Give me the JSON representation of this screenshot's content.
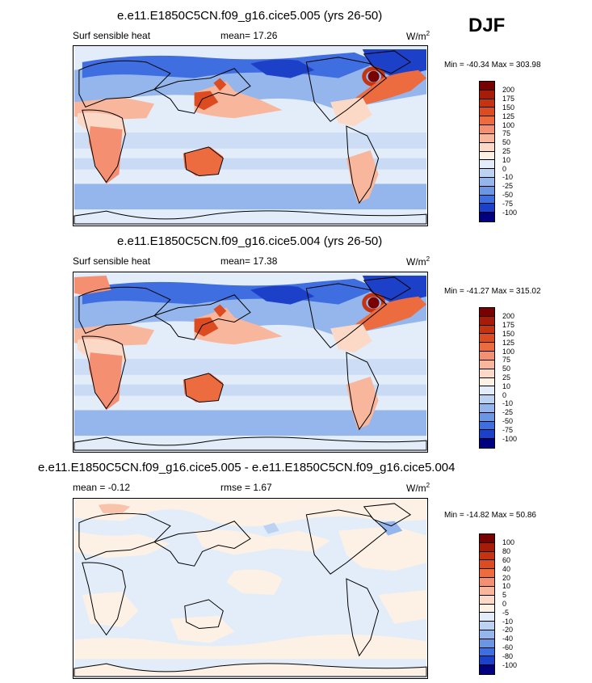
{
  "season": "DJF",
  "panels": [
    {
      "title": "e.e11.E1850C5CN.f09_g16.cice5.005 (yrs 26-50)",
      "left_label": "Surf sensible heat",
      "center_label": "mean=  17.26",
      "units": "W/m",
      "units_sup": "2",
      "minmax": "Min = -40.34 Max = 303.98",
      "levels": [
        "200",
        "175",
        "150",
        "125",
        "100",
        "75",
        "50",
        "25",
        "10",
        "0",
        "-10",
        "-25",
        "-50",
        "-75",
        "-100"
      ]
    },
    {
      "title": "e.e11.E1850C5CN.f09_g16.cice5.004 (yrs 26-50)",
      "left_label": "Surf sensible heat",
      "center_label": "mean=  17.38",
      "units": "W/m",
      "units_sup": "2",
      "minmax": "Min = -41.27 Max = 315.02",
      "levels": [
        "200",
        "175",
        "150",
        "125",
        "100",
        "75",
        "50",
        "25",
        "10",
        "0",
        "-10",
        "-25",
        "-50",
        "-75",
        "-100"
      ]
    },
    {
      "title": "e.e11.E1850C5CN.f09_g16.cice5.005 - e.e11.E1850C5CN.f09_g16.cice5.004",
      "left_label": "mean =  -0.12",
      "center_label": "rmse =  1.67",
      "units": "W/m",
      "units_sup": "2",
      "minmax": "Min = -14.82 Max =  50.86",
      "levels": [
        "100",
        "80",
        "60",
        "40",
        "20",
        "10",
        "5",
        "0",
        "-5",
        "-10",
        "-20",
        "-40",
        "-60",
        "-80",
        "-100"
      ]
    }
  ],
  "colors": [
    "#7a0000",
    "#a51d08",
    "#c5340e",
    "#dc4c20",
    "#ec6b3f",
    "#f49071",
    "#f8b69c",
    "#fcd9c6",
    "#fdf1e6",
    "#e3edf9",
    "#bcd2f2",
    "#94b6ec",
    "#6b96e6",
    "#3f6ee0",
    "#1d40c9",
    "#000080"
  ],
  "chart_data": [
    {
      "type": "heatmap",
      "title": "e.e11.E1850C5CN.f09_g16.cice5.005 (yrs 26-50)",
      "variable": "Surf sensible heat",
      "units": "W/m2",
      "mean": 17.26,
      "min": -40.34,
      "max": 303.98,
      "contour_levels": [
        -100,
        -75,
        -50,
        -25,
        -10,
        0,
        10,
        25,
        50,
        75,
        100,
        125,
        150,
        175,
        200
      ]
    },
    {
      "type": "heatmap",
      "title": "e.e11.E1850C5CN.f09_g16.cice5.004 (yrs 26-50)",
      "variable": "Surf sensible heat",
      "units": "W/m2",
      "mean": 17.38,
      "min": -41.27,
      "max": 315.02,
      "contour_levels": [
        -100,
        -75,
        -50,
        -25,
        -10,
        0,
        10,
        25,
        50,
        75,
        100,
        125,
        150,
        175,
        200
      ]
    },
    {
      "type": "heatmap",
      "title": "e.e11.E1850C5CN.f09_g16.cice5.005 - e.e11.E1850C5CN.f09_g16.cice5.004",
      "units": "W/m2",
      "mean": -0.12,
      "rmse": 1.67,
      "min": -14.82,
      "max": 50.86,
      "contour_levels": [
        -100,
        -80,
        -60,
        -40,
        -20,
        -10,
        -5,
        0,
        5,
        10,
        20,
        40,
        60,
        80,
        100
      ]
    }
  ]
}
